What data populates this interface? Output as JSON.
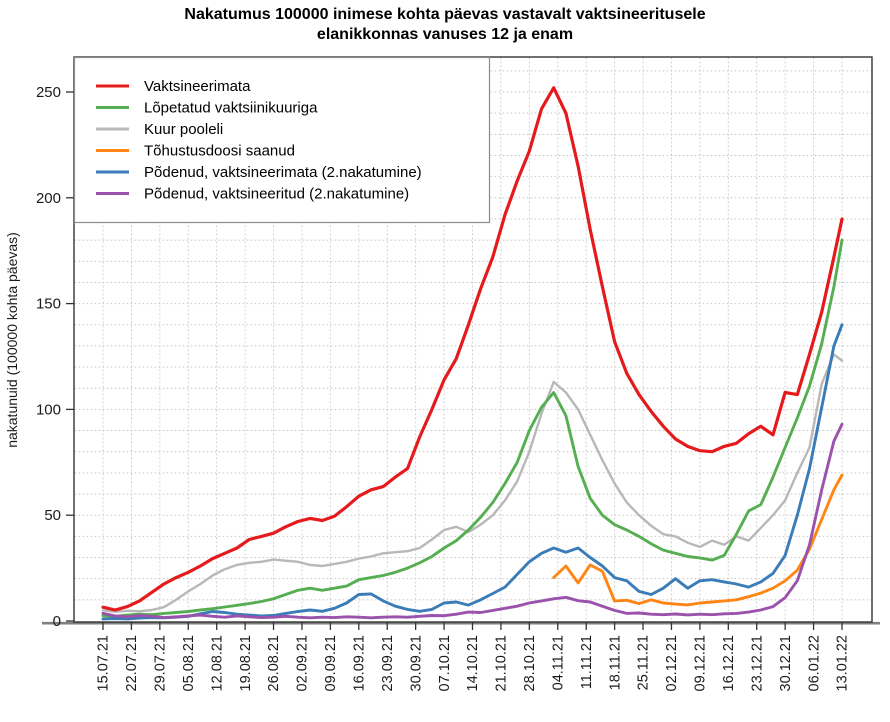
{
  "page": {
    "title_line1": "Nakatumus 100000 inimese kohta päevas vastavalt vaktsineeritusele",
    "title_line2": "elanikkonnas vanuses 12 ja enam"
  },
  "chart_data": {
    "type": "line",
    "title": "Nakatumus 100000 inimese kohta päevas vastavalt vaktsineeritusele elanikkonnas vanuses 12 ja enam",
    "xlabel": "",
    "ylabel": "nakatunuid (100000 kohta päevas)",
    "ylim": [
      0,
      266
    ],
    "y_ticks": [
      0,
      50,
      100,
      150,
      200,
      250
    ],
    "y_minor_grid_step": 10,
    "grid": "dotted light-gray, horizontal every 10 units, vertical at weekly ticks",
    "legend_position": "top-left inside plot",
    "x_unit": "days since 15.07.2021",
    "x_tick_days": [
      0,
      7,
      14,
      21,
      28,
      35,
      42,
      49,
      56,
      63,
      70,
      77,
      84,
      91,
      98,
      105,
      112,
      119,
      126,
      133,
      140,
      147,
      154,
      161,
      168,
      175,
      182
    ],
    "x_tick_labels": [
      "15.07.21",
      "22.07.21",
      "29.07.21",
      "05.08.21",
      "12.08.21",
      "19.08.21",
      "26.08.21",
      "02.09.21",
      "09.09.21",
      "16.09.21",
      "23.09.21",
      "30.09.21",
      "07.10.21",
      "14.10.21",
      "21.10.21",
      "28.10.21",
      "04.11.21",
      "11.11.21",
      "18.11.21",
      "25.11.21",
      "02.12.21",
      "09.12.21",
      "16.12.21",
      "23.12.21",
      "30.12.21",
      "06.01.22",
      "13.01.22"
    ],
    "sample_days": [
      0,
      3,
      6,
      9,
      12,
      15,
      18,
      21,
      24,
      27,
      30,
      33,
      36,
      39,
      42,
      45,
      48,
      51,
      54,
      57,
      60,
      63,
      66,
      69,
      72,
      75,
      78,
      81,
      84,
      87,
      90,
      93,
      96,
      99,
      102,
      105,
      108,
      111,
      114,
      117,
      120,
      123,
      126,
      129,
      132,
      135,
      138,
      141,
      144,
      147,
      150,
      153,
      156,
      159,
      162,
      165,
      168,
      171,
      174,
      177,
      180,
      182
    ],
    "axis_colors": {
      "box": "#333333",
      "x_axis_line": "#7f7f7f",
      "tick_label": "#1a1a1a",
      "grid": "#c9c9c9"
    },
    "series": [
      {
        "name": "Vaktsineerimata",
        "color": "#e41a1c",
        "values": [
          6.5,
          5.2,
          6.8,
          9.5,
          13.5,
          17.5,
          20.5,
          23,
          26,
          29.5,
          32,
          34.5,
          38.5,
          40,
          41.5,
          44.5,
          47,
          48.5,
          47.5,
          49.5,
          54,
          59,
          62,
          63.5,
          68,
          72,
          87,
          100,
          114,
          124,
          140,
          157,
          172,
          192,
          208,
          222,
          242,
          252,
          240,
          215,
          185,
          158,
          132,
          117,
          107,
          99,
          92,
          86,
          82.5,
          80.5,
          80,
          82.5,
          84,
          88.5,
          92,
          88,
          108,
          107,
          126,
          146,
          172,
          190
        ]
      },
      {
        "name": "Lõpetatud vaktsiinikuuriga",
        "color": "#56ae52",
        "values": [
          2.5,
          2.2,
          2.8,
          3.2,
          3.0,
          3.6,
          4.0,
          4.5,
          5.2,
          5.8,
          6.6,
          7.4,
          8.2,
          9.2,
          10.5,
          12.5,
          14.5,
          15.5,
          14.5,
          15.5,
          16.5,
          19.5,
          20.5,
          21.5,
          23,
          25,
          27.5,
          30.5,
          34.5,
          38,
          43,
          49,
          56,
          65,
          75,
          90,
          101,
          108,
          97,
          73,
          58,
          50,
          45.5,
          43,
          40,
          36.5,
          33.5,
          32,
          30.5,
          29.8,
          28.8,
          31,
          41,
          52,
          55,
          68,
          82,
          96,
          111,
          131,
          158,
          180
        ]
      },
      {
        "name": "Kuur pooleli",
        "color": "#b8b8b8",
        "values": [
          5.0,
          4.4,
          4.8,
          4.6,
          5.2,
          6.5,
          10,
          14,
          17.5,
          21.5,
          24.5,
          26.5,
          27.5,
          28,
          29,
          28.5,
          28,
          26.5,
          26,
          27,
          28,
          29.5,
          30.5,
          32,
          32.5,
          33,
          34.5,
          38.5,
          43,
          44.5,
          42,
          45.5,
          50,
          57,
          66,
          80,
          98,
          113,
          108,
          100,
          88,
          76,
          65,
          56,
          50,
          45,
          41,
          40,
          37,
          35,
          38,
          36,
          40,
          38,
          44,
          50,
          57,
          70,
          82,
          112,
          126,
          123
        ]
      },
      {
        "name": "Tõhustusdoosi saanud",
        "color": "#ff8614",
        "values": [
          null,
          null,
          null,
          null,
          null,
          null,
          null,
          null,
          null,
          null,
          null,
          null,
          null,
          null,
          null,
          null,
          null,
          null,
          null,
          null,
          null,
          null,
          null,
          null,
          null,
          null,
          null,
          null,
          null,
          null,
          null,
          null,
          null,
          null,
          null,
          null,
          null,
          20.5,
          26,
          18,
          26.5,
          23.5,
          9.5,
          9.8,
          8.2,
          10,
          8.5,
          8.0,
          7.6,
          8.5,
          9.0,
          9.5,
          10,
          11.5,
          13.2,
          15.5,
          19,
          24,
          34,
          48,
          62,
          69
        ]
      },
      {
        "name": "Põdenud, vaktsineerimata (2.nakatumine)",
        "color": "#3a7cb8",
        "values": [
          1.0,
          1.2,
          1.0,
          1.4,
          1.6,
          1.5,
          1.8,
          2.2,
          3.4,
          4.5,
          4.0,
          3.2,
          2.8,
          2.4,
          2.6,
          3.6,
          4.5,
          5.2,
          4.6,
          6.0,
          8.5,
          12.5,
          12.8,
          9.5,
          7.0,
          5.5,
          4.6,
          5.5,
          8.5,
          9.0,
          7.5,
          10,
          13,
          16,
          22,
          28,
          32,
          34.5,
          32.5,
          34.5,
          30,
          26,
          20.5,
          19,
          14,
          12.5,
          15.5,
          20,
          15.5,
          19,
          19.5,
          18.5,
          17.5,
          16,
          18.5,
          22.5,
          31,
          50,
          72,
          101,
          130,
          140
        ]
      },
      {
        "name": "Põdenud, vaktsineeritud (2.nakatumine)",
        "color": "#9a52ad",
        "values": [
          3.6,
          2.4,
          2.0,
          2.6,
          2.2,
          1.6,
          2.0,
          2.4,
          2.8,
          2.2,
          1.8,
          2.4,
          2.0,
          1.6,
          1.8,
          2.2,
          1.8,
          1.5,
          1.8,
          1.6,
          2.0,
          1.8,
          1.5,
          1.8,
          2.0,
          1.8,
          2.2,
          2.6,
          2.5,
          3.2,
          4.2,
          4.0,
          5.0,
          6.0,
          7.0,
          8.5,
          9.5,
          10.5,
          11.2,
          9.6,
          9.0,
          7.0,
          5.0,
          3.6,
          3.8,
          3.2,
          3.0,
          3.3,
          2.9,
          3.2,
          3.0,
          3.4,
          3.6,
          4.2,
          5.2,
          6.8,
          11,
          19,
          36,
          62,
          85,
          93
        ]
      }
    ]
  }
}
